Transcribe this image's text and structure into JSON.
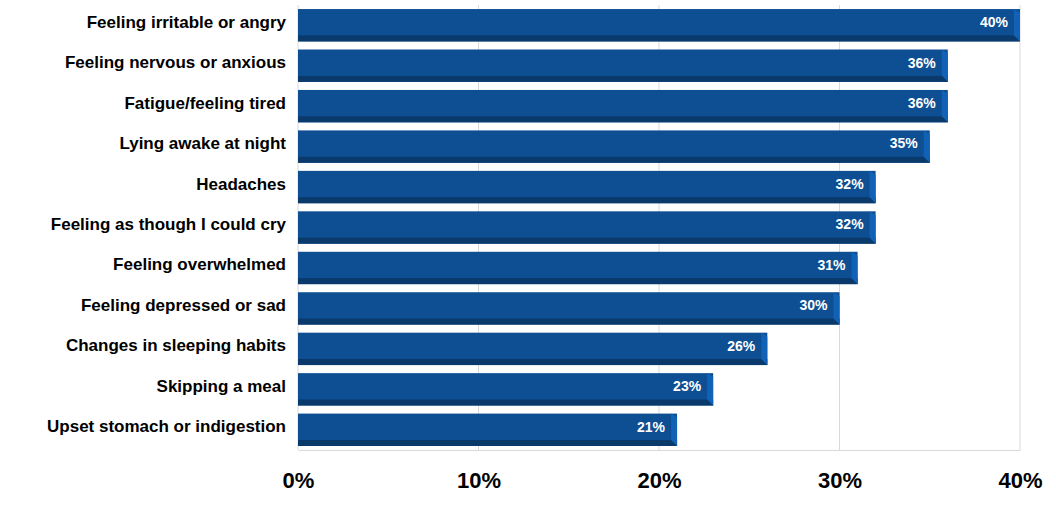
{
  "chart_data": {
    "type": "bar",
    "orientation": "horizontal",
    "categories": [
      "Feeling irritable or angry",
      "Feeling nervous or anxious",
      "Fatigue/feeling tired",
      "Lying awake at night",
      "Headaches",
      "Feeling as though I could cry",
      "Feeling overwhelmed",
      "Feeling depressed or sad",
      "Changes in sleeping habits",
      "Skipping a meal",
      "Upset stomach or indigestion"
    ],
    "values": [
      40,
      36,
      36,
      35,
      32,
      32,
      31,
      30,
      26,
      23,
      21
    ],
    "value_labels": [
      "40%",
      "36%",
      "36%",
      "35%",
      "32%",
      "32%",
      "31%",
      "30%",
      "26%",
      "23%",
      "21%"
    ],
    "color": "#0e4f93",
    "xlim": [
      0,
      40
    ],
    "xticks": [
      {
        "value": 0,
        "label": "0%"
      },
      {
        "value": 10,
        "label": "10%"
      },
      {
        "value": 20,
        "label": "20%"
      },
      {
        "value": 30,
        "label": "30%"
      },
      {
        "value": 40,
        "label": "40%"
      }
    ],
    "grid": true,
    "data_labels": true
  }
}
